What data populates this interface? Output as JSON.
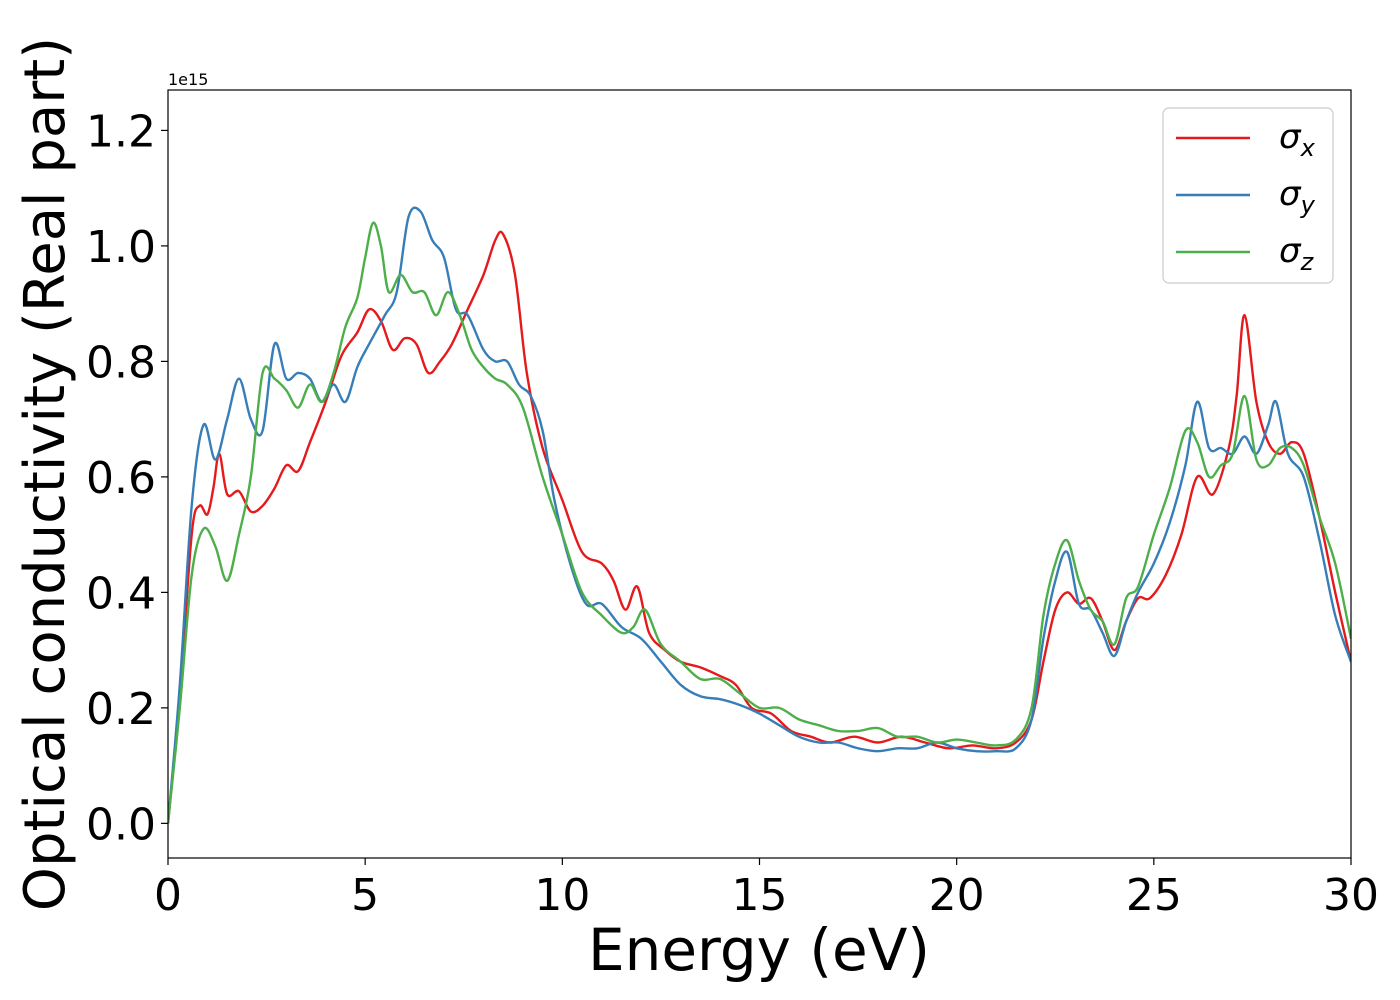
{
  "chart_data": {
    "type": "line",
    "xlabel": "Energy (eV)",
    "ylabel": "Optical conductivity (Real part)",
    "y_offset_text": "1e15",
    "xlim": [
      0,
      30
    ],
    "ylim": [
      -0.06,
      1.27
    ],
    "x_ticks": [
      0,
      5,
      10,
      15,
      20,
      25,
      30
    ],
    "y_ticks": [
      0.0,
      0.2,
      0.4,
      0.6,
      0.8,
      1.0,
      1.2
    ],
    "y_tick_labels": [
      "0.0",
      "0.2",
      "0.4",
      "0.6",
      "0.8",
      "1.0",
      "1.2"
    ],
    "grid": false,
    "legend_position": "top-right",
    "series": [
      {
        "name": "σx",
        "symbol": "σ",
        "sub": "x",
        "color": "#e41a1c",
        "points": [
          [
            0,
            0.0
          ],
          [
            0.3,
            0.22
          ],
          [
            0.6,
            0.5
          ],
          [
            0.8,
            0.55
          ],
          [
            1.0,
            0.535
          ],
          [
            1.15,
            0.58
          ],
          [
            1.3,
            0.64
          ],
          [
            1.5,
            0.57
          ],
          [
            1.8,
            0.575
          ],
          [
            2.1,
            0.54
          ],
          [
            2.4,
            0.55
          ],
          [
            2.7,
            0.58
          ],
          [
            3.0,
            0.62
          ],
          [
            3.3,
            0.61
          ],
          [
            3.6,
            0.66
          ],
          [
            4.0,
            0.73
          ],
          [
            4.4,
            0.81
          ],
          [
            4.8,
            0.85
          ],
          [
            5.1,
            0.89
          ],
          [
            5.4,
            0.87
          ],
          [
            5.7,
            0.82
          ],
          [
            6.0,
            0.84
          ],
          [
            6.3,
            0.83
          ],
          [
            6.6,
            0.78
          ],
          [
            6.9,
            0.8
          ],
          [
            7.2,
            0.83
          ],
          [
            7.6,
            0.89
          ],
          [
            8.0,
            0.95
          ],
          [
            8.3,
            1.01
          ],
          [
            8.5,
            1.02
          ],
          [
            8.8,
            0.95
          ],
          [
            9.1,
            0.78
          ],
          [
            9.5,
            0.65
          ],
          [
            10.0,
            0.56
          ],
          [
            10.5,
            0.47
          ],
          [
            11.0,
            0.45
          ],
          [
            11.3,
            0.42
          ],
          [
            11.6,
            0.37
          ],
          [
            11.9,
            0.41
          ],
          [
            12.2,
            0.33
          ],
          [
            12.6,
            0.3
          ],
          [
            13.0,
            0.28
          ],
          [
            13.5,
            0.27
          ],
          [
            14.0,
            0.255
          ],
          [
            14.4,
            0.24
          ],
          [
            14.8,
            0.2
          ],
          [
            15.3,
            0.19
          ],
          [
            15.8,
            0.16
          ],
          [
            16.3,
            0.15
          ],
          [
            16.8,
            0.14
          ],
          [
            17.4,
            0.15
          ],
          [
            18.0,
            0.14
          ],
          [
            18.6,
            0.15
          ],
          [
            19.2,
            0.14
          ],
          [
            19.8,
            0.13
          ],
          [
            20.4,
            0.135
          ],
          [
            21.0,
            0.13
          ],
          [
            21.5,
            0.14
          ],
          [
            21.9,
            0.18
          ],
          [
            22.2,
            0.28
          ],
          [
            22.5,
            0.37
          ],
          [
            22.8,
            0.4
          ],
          [
            23.1,
            0.38
          ],
          [
            23.4,
            0.39
          ],
          [
            23.7,
            0.35
          ],
          [
            24.0,
            0.3
          ],
          [
            24.3,
            0.35
          ],
          [
            24.6,
            0.39
          ],
          [
            24.9,
            0.39
          ],
          [
            25.3,
            0.43
          ],
          [
            25.7,
            0.5
          ],
          [
            26.1,
            0.6
          ],
          [
            26.5,
            0.57
          ],
          [
            26.9,
            0.65
          ],
          [
            27.1,
            0.74
          ],
          [
            27.3,
            0.88
          ],
          [
            27.6,
            0.73
          ],
          [
            27.9,
            0.66
          ],
          [
            28.2,
            0.64
          ],
          [
            28.5,
            0.66
          ],
          [
            28.8,
            0.64
          ],
          [
            29.2,
            0.53
          ],
          [
            29.6,
            0.4
          ],
          [
            30.0,
            0.28
          ]
        ]
      },
      {
        "name": "σy",
        "symbol": "σ",
        "sub": "y",
        "color": "#377eb8",
        "points": [
          [
            0,
            0.0
          ],
          [
            0.3,
            0.24
          ],
          [
            0.6,
            0.55
          ],
          [
            0.9,
            0.69
          ],
          [
            1.2,
            0.63
          ],
          [
            1.5,
            0.7
          ],
          [
            1.8,
            0.77
          ],
          [
            2.1,
            0.7
          ],
          [
            2.4,
            0.68
          ],
          [
            2.7,
            0.83
          ],
          [
            3.0,
            0.77
          ],
          [
            3.3,
            0.78
          ],
          [
            3.6,
            0.77
          ],
          [
            3.9,
            0.73
          ],
          [
            4.2,
            0.76
          ],
          [
            4.5,
            0.73
          ],
          [
            4.8,
            0.79
          ],
          [
            5.1,
            0.83
          ],
          [
            5.5,
            0.88
          ],
          [
            5.8,
            0.92
          ],
          [
            6.1,
            1.05
          ],
          [
            6.4,
            1.06
          ],
          [
            6.7,
            1.01
          ],
          [
            7.0,
            0.98
          ],
          [
            7.3,
            0.89
          ],
          [
            7.6,
            0.88
          ],
          [
            8.0,
            0.82
          ],
          [
            8.3,
            0.8
          ],
          [
            8.6,
            0.8
          ],
          [
            8.9,
            0.76
          ],
          [
            9.2,
            0.74
          ],
          [
            9.5,
            0.68
          ],
          [
            9.8,
            0.56
          ],
          [
            10.2,
            0.45
          ],
          [
            10.6,
            0.38
          ],
          [
            11.0,
            0.38
          ],
          [
            11.5,
            0.34
          ],
          [
            12.0,
            0.32
          ],
          [
            12.5,
            0.28
          ],
          [
            13.0,
            0.24
          ],
          [
            13.5,
            0.22
          ],
          [
            14.0,
            0.215
          ],
          [
            14.5,
            0.205
          ],
          [
            15.0,
            0.19
          ],
          [
            15.5,
            0.17
          ],
          [
            16.0,
            0.15
          ],
          [
            16.5,
            0.14
          ],
          [
            17.0,
            0.14
          ],
          [
            17.5,
            0.13
          ],
          [
            18.0,
            0.125
          ],
          [
            18.5,
            0.13
          ],
          [
            19.0,
            0.13
          ],
          [
            19.5,
            0.14
          ],
          [
            20.0,
            0.13
          ],
          [
            20.5,
            0.125
          ],
          [
            21.0,
            0.125
          ],
          [
            21.5,
            0.13
          ],
          [
            21.9,
            0.18
          ],
          [
            22.2,
            0.32
          ],
          [
            22.5,
            0.42
          ],
          [
            22.8,
            0.47
          ],
          [
            23.1,
            0.38
          ],
          [
            23.4,
            0.37
          ],
          [
            23.7,
            0.33
          ],
          [
            24.0,
            0.29
          ],
          [
            24.3,
            0.35
          ],
          [
            24.6,
            0.4
          ],
          [
            25.0,
            0.45
          ],
          [
            25.4,
            0.52
          ],
          [
            25.8,
            0.62
          ],
          [
            26.1,
            0.73
          ],
          [
            26.4,
            0.65
          ],
          [
            26.7,
            0.65
          ],
          [
            27.0,
            0.64
          ],
          [
            27.3,
            0.67
          ],
          [
            27.6,
            0.64
          ],
          [
            27.9,
            0.69
          ],
          [
            28.1,
            0.73
          ],
          [
            28.4,
            0.64
          ],
          [
            28.8,
            0.6
          ],
          [
            29.2,
            0.49
          ],
          [
            29.6,
            0.36
          ],
          [
            30.0,
            0.28
          ]
        ]
      },
      {
        "name": "σz",
        "symbol": "σ",
        "sub": "z",
        "color": "#4daf4a",
        "points": [
          [
            0,
            0.0
          ],
          [
            0.3,
            0.2
          ],
          [
            0.6,
            0.43
          ],
          [
            0.9,
            0.51
          ],
          [
            1.2,
            0.48
          ],
          [
            1.5,
            0.42
          ],
          [
            1.8,
            0.5
          ],
          [
            2.1,
            0.6
          ],
          [
            2.4,
            0.78
          ],
          [
            2.7,
            0.77
          ],
          [
            3.0,
            0.75
          ],
          [
            3.3,
            0.72
          ],
          [
            3.6,
            0.76
          ],
          [
            3.9,
            0.73
          ],
          [
            4.2,
            0.78
          ],
          [
            4.5,
            0.86
          ],
          [
            4.8,
            0.91
          ],
          [
            5.0,
            0.98
          ],
          [
            5.2,
            1.04
          ],
          [
            5.4,
            1.0
          ],
          [
            5.6,
            0.92
          ],
          [
            5.9,
            0.95
          ],
          [
            6.2,
            0.92
          ],
          [
            6.5,
            0.92
          ],
          [
            6.8,
            0.88
          ],
          [
            7.1,
            0.92
          ],
          [
            7.4,
            0.88
          ],
          [
            7.7,
            0.82
          ],
          [
            8.0,
            0.79
          ],
          [
            8.3,
            0.77
          ],
          [
            8.6,
            0.76
          ],
          [
            9.0,
            0.72
          ],
          [
            9.5,
            0.6
          ],
          [
            10.0,
            0.5
          ],
          [
            10.5,
            0.4
          ],
          [
            11.0,
            0.36
          ],
          [
            11.5,
            0.33
          ],
          [
            11.8,
            0.34
          ],
          [
            12.1,
            0.37
          ],
          [
            12.5,
            0.31
          ],
          [
            13.0,
            0.28
          ],
          [
            13.5,
            0.25
          ],
          [
            14.0,
            0.25
          ],
          [
            14.5,
            0.225
          ],
          [
            15.0,
            0.2
          ],
          [
            15.5,
            0.2
          ],
          [
            16.0,
            0.18
          ],
          [
            16.5,
            0.17
          ],
          [
            17.0,
            0.16
          ],
          [
            17.5,
            0.16
          ],
          [
            18.0,
            0.165
          ],
          [
            18.5,
            0.15
          ],
          [
            19.0,
            0.15
          ],
          [
            19.5,
            0.14
          ],
          [
            20.0,
            0.145
          ],
          [
            20.5,
            0.14
          ],
          [
            21.0,
            0.135
          ],
          [
            21.5,
            0.145
          ],
          [
            21.9,
            0.2
          ],
          [
            22.2,
            0.36
          ],
          [
            22.5,
            0.45
          ],
          [
            22.8,
            0.49
          ],
          [
            23.1,
            0.42
          ],
          [
            23.4,
            0.37
          ],
          [
            23.7,
            0.35
          ],
          [
            24.0,
            0.31
          ],
          [
            24.3,
            0.39
          ],
          [
            24.6,
            0.41
          ],
          [
            25.0,
            0.5
          ],
          [
            25.4,
            0.58
          ],
          [
            25.8,
            0.68
          ],
          [
            26.1,
            0.66
          ],
          [
            26.4,
            0.6
          ],
          [
            26.7,
            0.62
          ],
          [
            27.0,
            0.64
          ],
          [
            27.3,
            0.74
          ],
          [
            27.6,
            0.63
          ],
          [
            27.9,
            0.62
          ],
          [
            28.2,
            0.65
          ],
          [
            28.5,
            0.65
          ],
          [
            28.8,
            0.62
          ],
          [
            29.2,
            0.53
          ],
          [
            29.6,
            0.45
          ],
          [
            30.0,
            0.32
          ]
        ]
      }
    ]
  }
}
